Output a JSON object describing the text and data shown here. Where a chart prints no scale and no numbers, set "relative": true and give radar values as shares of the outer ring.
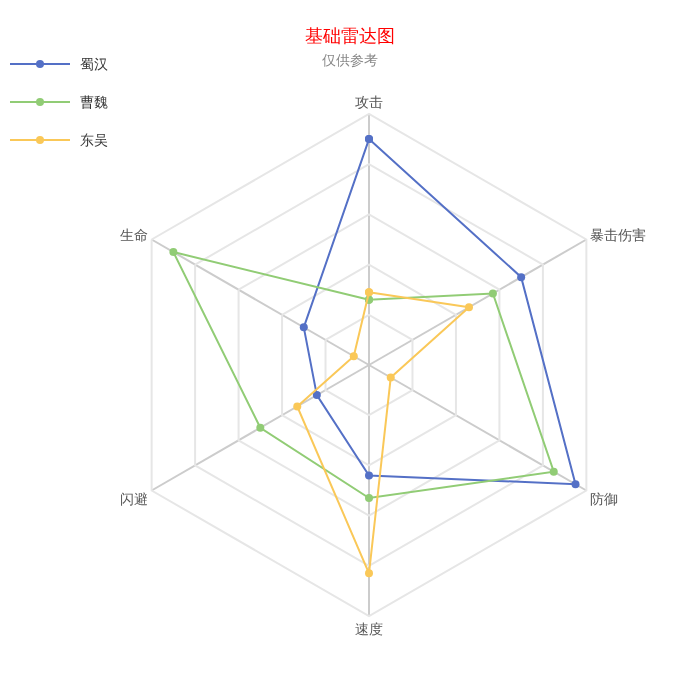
{
  "chart_data": {
    "type": "radar",
    "title": "基础雷达图",
    "subtitle": "仅供参考",
    "relative": true,
    "grid": true,
    "legend": "top left",
    "marker": "circle",
    "categories": [
      "攻击",
      "暴击伤害",
      "防御",
      "速度",
      "闪避",
      "生命"
    ],
    "series": [
      {
        "name": "蜀汉",
        "color": "#5470c6",
        "values": [
          0.9,
          0.7,
          0.95,
          0.44,
          0.24,
          0.3
        ]
      },
      {
        "name": "曹魏",
        "color": "#91cc75",
        "values": [
          0.26,
          0.57,
          0.85,
          0.53,
          0.5,
          0.9
        ]
      },
      {
        "name": "东吴",
        "color": "#fac858",
        "values": [
          0.29,
          0.46,
          0.1,
          0.83,
          0.33,
          0.07
        ]
      }
    ]
  }
}
